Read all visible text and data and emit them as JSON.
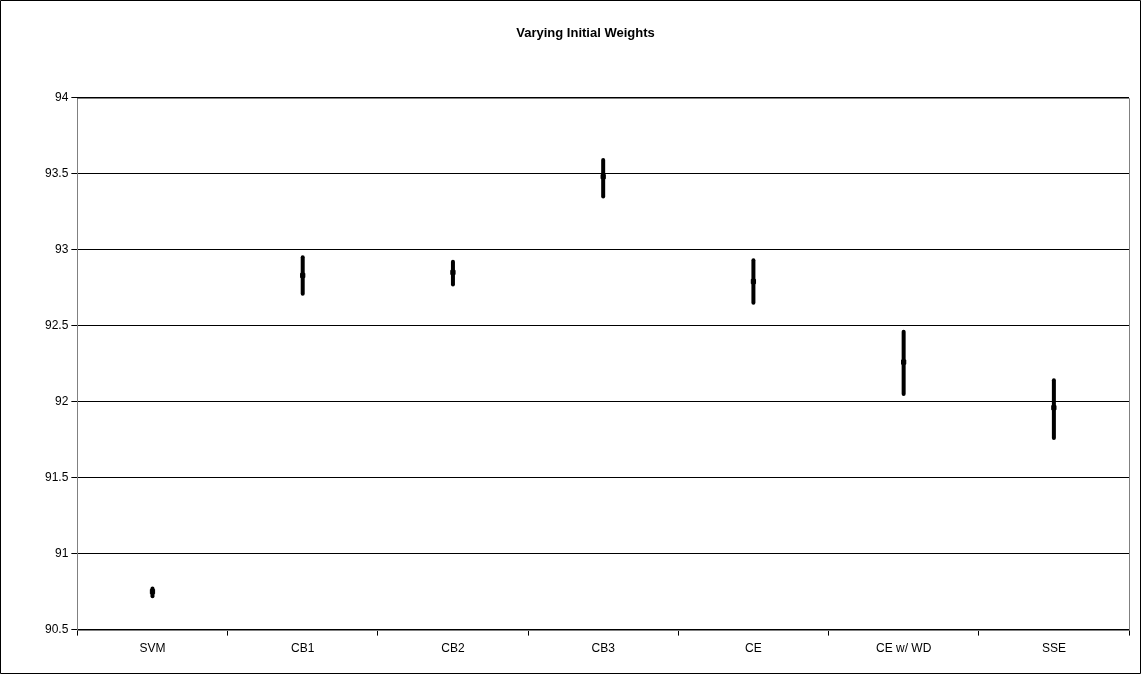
{
  "chart_data": {
    "type": "scatter",
    "title": "Varying Initial Weights",
    "categories": [
      "SVM",
      "CB1",
      "CB2",
      "CB3",
      "CE",
      "CE w/ WD",
      "SSE"
    ],
    "marker": "square",
    "values": [
      90.75,
      92.83,
      92.85,
      93.48,
      92.79,
      92.26,
      91.96
    ],
    "errors": [
      [
        90.72,
        90.77
      ],
      [
        92.71,
        92.95
      ],
      [
        92.77,
        92.92
      ],
      [
        93.35,
        93.59
      ],
      [
        92.65,
        92.93
      ],
      [
        92.05,
        92.46
      ],
      [
        91.76,
        92.14
      ]
    ],
    "color": "#000000",
    "ylim": [
      90.5,
      94
    ],
    "yticks": [
      {
        "value": 90.5,
        "label": "90.5"
      },
      {
        "value": 91,
        "label": "91"
      },
      {
        "value": 91.5,
        "label": "91.5"
      },
      {
        "value": 92,
        "label": "92"
      },
      {
        "value": 92.5,
        "label": "92.5"
      },
      {
        "value": 93,
        "label": "93"
      },
      {
        "value": 93.5,
        "label": "93.5"
      },
      {
        "value": 94,
        "label": "94"
      }
    ],
    "grid": "y",
    "legend": false
  }
}
